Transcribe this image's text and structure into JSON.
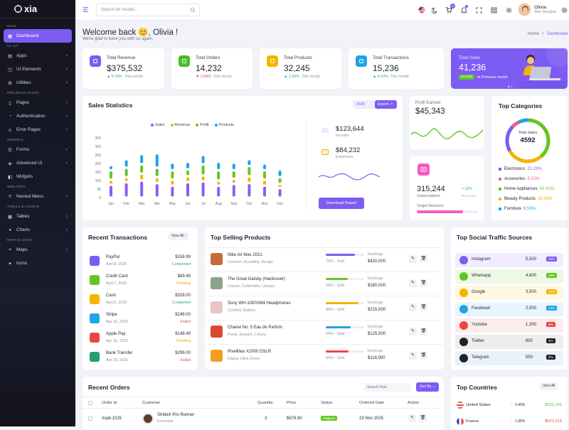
{
  "app": {
    "name": "xia"
  },
  "sidebar": {
    "sections": [
      "Main",
      "Ul Kit",
      "Pre-build Pages",
      "General",
      "Web Apps",
      "Tables & Charts",
      "Maps & Icons"
    ],
    "items": [
      {
        "label": "Dashboard",
        "icon": "dashboard-icon"
      },
      {
        "label": "Apps",
        "icon": "apps-icon"
      },
      {
        "label": "UI Elements",
        "icon": "ui-elements-icon"
      },
      {
        "label": "Utilities",
        "icon": "utilities-icon"
      },
      {
        "label": "Pages",
        "icon": "pages-icon"
      },
      {
        "label": "Authentication",
        "icon": "authentication-icon"
      },
      {
        "label": "Error Pages",
        "icon": "error-pages-icon"
      },
      {
        "label": "Forms",
        "icon": "forms-icon"
      },
      {
        "label": "Advanced Ui",
        "icon": "advanced-ui-icon"
      },
      {
        "label": "Widgets",
        "icon": "widgets-icon"
      },
      {
        "label": "Nested Menu",
        "icon": "nested-menu-icon"
      },
      {
        "label": "Tables",
        "icon": "tables-icon"
      },
      {
        "label": "Charts",
        "icon": "charts-icon"
      },
      {
        "label": "Maps",
        "icon": "maps-icon"
      },
      {
        "label": "Icons",
        "icon": "icons-icon"
      }
    ]
  },
  "topbar": {
    "search_placeholder": "Search for results...",
    "cart_count": "4",
    "user_name": "Olivia",
    "user_role": "Web Designer"
  },
  "header": {
    "welcome": "Welcome back 😊, Olivia !",
    "subtitle": "We're glad to have you with us again.",
    "breadcrumb_home": "Home",
    "breadcrumb_sep": "/",
    "breadcrumb_current": "Dashboard"
  },
  "stats": [
    {
      "label": "Total Revenue",
      "value": "$375,532",
      "change": "5.15%",
      "period": "This month",
      "direction": "up",
      "color": "#7c5cf2"
    },
    {
      "label": "Total Orders",
      "value": "14,232",
      "change": "2.58%",
      "period": "This month",
      "direction": "down",
      "color": "#4bbd2a"
    },
    {
      "label": "Total Products",
      "value": "32,245",
      "change": "1.26%",
      "period": "This month",
      "direction": "up",
      "color": "#f5b400"
    },
    {
      "label": "Total Transactions",
      "value": "15,236",
      "change": "4.33%",
      "period": "This month",
      "direction": "up",
      "color": "#1fa3ea"
    }
  ],
  "sales_card": {
    "label": "Total Sales",
    "value": "41,236",
    "change": "14.23%",
    "text": "vs Previous month"
  },
  "sales_stats": {
    "title": "Sales Statistics",
    "year": "2025",
    "export": "Export",
    "income_value": "$123,644",
    "income_label": "Income",
    "expenses_value": "$84,232",
    "expenses_label": "Expenses",
    "download": "Download Report"
  },
  "chart_data": {
    "type": "bar",
    "title": "Sales Statistics",
    "categories": [
      "Jan",
      "Feb",
      "Mar",
      "Apr",
      "May",
      "Jun",
      "Jul",
      "Aug",
      "Sep",
      "Oct",
      "Nov",
      "Dec"
    ],
    "yticks": [
      "0",
      "50",
      "100",
      "150",
      "200",
      "250",
      "300",
      "350"
    ],
    "ylim": [
      0,
      350
    ],
    "legend_position": "top",
    "stacked": true,
    "series": [
      {
        "name": "Sales",
        "color": "#8b5cf6",
        "values": [
          75,
          90,
          100,
          85,
          70,
          90,
          95,
          70,
          80,
          85,
          70,
          55
        ]
      },
      {
        "name": "Revenue",
        "color": "#f5b400",
        "values": [
          30,
          30,
          40,
          35,
          35,
          35,
          35,
          30,
          30,
          40,
          35,
          25
        ]
      },
      {
        "name": "Profit",
        "color": "#63c624",
        "values": [
          55,
          55,
          55,
          55,
          55,
          40,
          65,
          60,
          50,
          60,
          55,
          40
        ]
      },
      {
        "name": "Products",
        "color": "#1fa3ea",
        "values": [
          30,
          50,
          60,
          85,
          45,
          45,
          55,
          50,
          45,
          40,
          40,
          45
        ]
      }
    ]
  },
  "profit": {
    "label": "Profit Earned",
    "value": "$45,343"
  },
  "subs": {
    "value": "315,244",
    "label": "Subscriptions",
    "change": "12%",
    "period": "This week",
    "target": "Target Reached",
    "progress": 0.75
  },
  "categories": {
    "title": "Top Categories",
    "center_label": "Total Sales",
    "center_value": "4592",
    "items": [
      {
        "name": "Electronics",
        "pct": "21.23%",
        "color": "#7c5cf2"
      },
      {
        "name": "Accesories",
        "pct": "6.53%",
        "color": "#f25c9b"
      },
      {
        "name": "Home Appliances",
        "pct": "42.41%",
        "color": "#63c624"
      },
      {
        "name": "Beauty Products",
        "pct": "29.64%",
        "color": "#f5b400"
      },
      {
        "name": "Furniture",
        "pct": "6.53%",
        "color": "#1fa3ea"
      }
    ]
  },
  "transactions": {
    "title": "Recent Transactions",
    "view_all": "View All",
    "items": [
      {
        "name": "PayPal",
        "date": "Apr18, 2025",
        "amount": "$159.99",
        "status": "Completed",
        "color": "#7c5cf2",
        "icon": "paypal-icon"
      },
      {
        "name": "Credit Card",
        "date": "Apr17, 2025",
        "amount": "$89.49",
        "status": "Pending",
        "color": "#63c624",
        "icon": "credit-card-icon"
      },
      {
        "name": "Cash",
        "date": "Apr16, 2025",
        "amount": "$329.00",
        "status": "Completed",
        "color": "#f5b400",
        "icon": "cash-icon"
      },
      {
        "name": "Stripe",
        "date": "Apr 15, 2025",
        "amount": "$249.00",
        "status": "Failed",
        "color": "#1fa3ea",
        "icon": "stripe-icon"
      },
      {
        "name": "Apple Pay",
        "date": "Apr 16, 2025",
        "amount": "$149.49",
        "status": "Pending",
        "color": "#ef4444",
        "icon": "apple-icon"
      },
      {
        "name": "Bank Transfer",
        "date": "Apr 15, 2025",
        "amount": "$299.00",
        "status": "Failed",
        "color": "#22a06b",
        "icon": "bank-icon"
      }
    ]
  },
  "products": {
    "title": "Top Selling Products",
    "earnings_label": "Earnings",
    "items": [
      {
        "name": "Nike Air Max 2021",
        "sub": "Comfort, Durability, Design",
        "sold": "75% - Sold",
        "pct": 0.75,
        "earn": "$420,000",
        "color": "#7c5cf2",
        "thumb": "#c9693a"
      },
      {
        "name": "The Great Gatsby (Hardcover)",
        "sub": "Classic, Collectible, Literary",
        "sold": "58% - Sold",
        "pct": 0.58,
        "earn": "$180,000",
        "color": "#63c624",
        "thumb": "#8aa38a"
      },
      {
        "name": "Sony WH-1000XM4 Headphones",
        "sub": "Comfort, Battery",
        "sold": "85% - Sold",
        "pct": 0.85,
        "earn": "$215,000",
        "color": "#f5b400",
        "thumb": "#e8c4c4"
      },
      {
        "name": "Chanel No. 5 Eau de Parfum",
        "sub": "Floral, Elegant, Luxury",
        "sold": "64% - Sold",
        "pct": 0.64,
        "earn": "$125,000",
        "color": "#1fa3ea",
        "thumb": "#d94a2b"
      },
      {
        "name": "PixelMax X2000 DSLR",
        "sub": "Digital, Ultra-Zoom",
        "sold": "60% - Sold",
        "pct": 0.6,
        "earn": "$118,000",
        "color": "#ef4444",
        "thumb": "#f0a020"
      }
    ]
  },
  "social": {
    "title": "Top Social Traffic Sources",
    "items": [
      {
        "name": "Instagram",
        "value": "5,500",
        "pct": "30%",
        "color": "#7c5cf2",
        "bg": "#f1ecff",
        "icon": "instagram-icon"
      },
      {
        "name": "Whatsapp",
        "value": "4,800",
        "pct": "25%",
        "color": "#63c624",
        "bg": "#edf9e6",
        "icon": "whatsapp-icon"
      },
      {
        "name": "Google",
        "value": "3,500",
        "pct": "20%",
        "color": "#f5b400",
        "bg": "#fff8e1",
        "icon": "google-icon"
      },
      {
        "name": "Facebook",
        "value": "2,500",
        "pct": "14%",
        "color": "#1fa3ea",
        "bg": "#e7f5fd",
        "icon": "facebook-icon"
      },
      {
        "name": "Youtube",
        "value": "1,300",
        "pct": "8%",
        "color": "#ef4444",
        "bg": "#fdecec",
        "icon": "youtube-icon"
      },
      {
        "name": "Twitter",
        "value": "850",
        "pct": "3%",
        "color": "#222222",
        "bg": "#eeeeee",
        "icon": "twitter-icon"
      },
      {
        "name": "Telegram",
        "value": "550",
        "pct": "2%",
        "color": "#1f2330",
        "bg": "#e9f2fb",
        "icon": "telegram-icon"
      }
    ]
  },
  "orders": {
    "title": "Recent Orders",
    "search_placeholder": "Search Here",
    "sort": "Sort By",
    "columns": [
      "Order Id",
      "Customer",
      "Quantity",
      "Price",
      "Status",
      "Ordered Date",
      "Action"
    ],
    "rows": [
      {
        "id": "#spk-1025",
        "product": "StrideX Pro Runner",
        "category": "Footwear",
        "qty": "3",
        "price": "$678.90",
        "status": "Shipped",
        "date": "23 Nov 2025"
      }
    ]
  },
  "countries": {
    "title": "Top Countries",
    "view_all": "View All",
    "items": [
      {
        "name": "United States",
        "change": "3.45%",
        "direction": "up",
        "value": "$532,146",
        "value_color": "#63c624"
      },
      {
        "name": "France",
        "change": "1.85%",
        "direction": "down",
        "value": "$531,214",
        "value_color": "#ef4444"
      }
    ]
  }
}
